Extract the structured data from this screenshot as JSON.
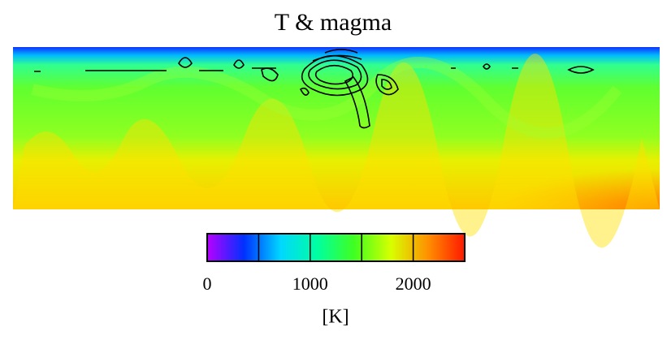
{
  "chart_data": {
    "type": "heatmap",
    "title": "T & magma",
    "colorbar": {
      "label": "[K]",
      "lim": [
        0,
        2500
      ],
      "ticks": [
        0,
        1000,
        2000
      ],
      "minor_ticks": [
        500,
        1500
      ],
      "colormap": [
        "#b800ff",
        "#0030ff",
        "#00d8ff",
        "#00ffa0",
        "#40ff20",
        "#d8ff00",
        "#ff9000",
        "#ff1800"
      ]
    }
  }
}
